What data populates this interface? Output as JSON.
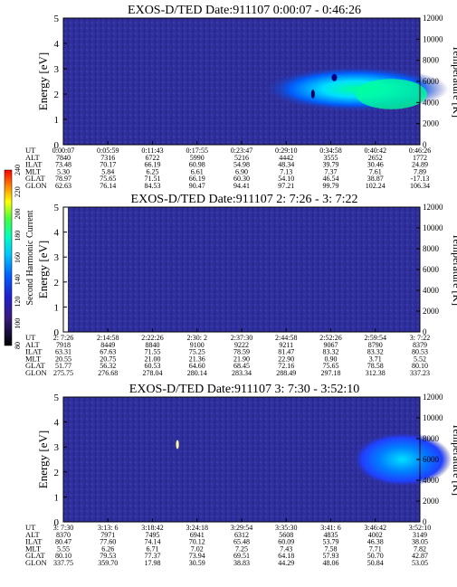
{
  "colorbar": {
    "label": "Second Harmonic Current",
    "ticks": [
      "80",
      "100",
      "120",
      "140",
      "160",
      "180",
      "200",
      "220",
      "240"
    ],
    "range": [
      80,
      240
    ]
  },
  "colors": {
    "background": "#2c2c9a",
    "cold": "#1a1a70",
    "cyan": "#00e0ff",
    "green": "#00ff9a",
    "blue": "#0060ff"
  },
  "chart_data": [
    {
      "type": "heatmap",
      "title": "EXOS-D/TED   Date:911107   0:00:07 - 0:46:26",
      "ylabel": "Energy [eV]",
      "y2label": "Temperature [K]",
      "ylim": [
        0,
        5
      ],
      "y2lim": [
        0,
        12000
      ],
      "yticks": [
        "0",
        "1",
        "2",
        "3",
        "4",
        "5"
      ],
      "y2ticks": [
        "0",
        "2000",
        "4000",
        "6000",
        "8000",
        "10000",
        "12000"
      ],
      "table": {
        "row_labels": [
          "UT",
          "ALT",
          "ILAT",
          "MLT",
          "GLAT",
          "GLON"
        ],
        "columns": [
          [
            "0:00:07",
            "7840",
            "73.48",
            "5.30",
            "78.97",
            "62.63"
          ],
          [
            "0:05:59",
            "7316",
            "70.17",
            "5.84",
            "75.65",
            "76.14"
          ],
          [
            "0:11:43",
            "6722",
            "66.19",
            "6.25",
            "71.51",
            "84.53"
          ],
          [
            "0:17:55",
            "5990",
            "60.98",
            "6.61",
            "66.19",
            "90.47"
          ],
          [
            "0:23:47",
            "5216",
            "54.98",
            "6.90",
            "60.30",
            "94.41"
          ],
          [
            "0:29:10",
            "4442",
            "48.34",
            "7.13",
            "54.10",
            "97.21"
          ],
          [
            "0:34:58",
            "3555",
            "39.79",
            "7.37",
            "46.54",
            "99.79"
          ],
          [
            "0:40:42",
            "2652",
            "30.46",
            "7.61",
            "38.87",
            "102.24"
          ],
          [
            "0:46:26",
            "1772",
            "24.89",
            "7.89",
            "-17.13",
            "106.34"
          ]
        ]
      }
    },
    {
      "type": "heatmap",
      "title": "EXOS-D/TED   Date:911107   2: 7:26 - 3: 7:22",
      "ylabel": "Energy [eV]",
      "y2label": "Temperature [K]",
      "ylim": [
        0,
        5
      ],
      "y2lim": [
        0,
        12000
      ],
      "yticks": [
        "0",
        "1",
        "2",
        "3",
        "4",
        "5"
      ],
      "y2ticks": [
        "0",
        "2000",
        "4000",
        "6000",
        "8000",
        "10000",
        "12000"
      ],
      "table": {
        "row_labels": [
          "UT",
          "ALT",
          "ILAT",
          "MLT",
          "GLAT",
          "GLON"
        ],
        "columns": [
          [
            "2: 7:26",
            "7918",
            "63.31",
            "20.55",
            "51.77",
            "275.75"
          ],
          [
            "2:14:58",
            "8449",
            "67.63",
            "20.75",
            "56.32",
            "276.68"
          ],
          [
            "2:22:26",
            "8840",
            "71.55",
            "21.00",
            "60.53",
            "278.04"
          ],
          [
            "2:30: 2",
            "9100",
            "75.25",
            "21.36",
            "64.60",
            "280.14"
          ],
          [
            "2:37:30",
            "9222",
            "78.59",
            "21.90",
            "68.45",
            "283.34"
          ],
          [
            "2:44:58",
            "9211",
            "81.47",
            "22.90",
            "72.16",
            "288.49"
          ],
          [
            "2:52:26",
            "9067",
            "83.32",
            "0.90",
            "75.65",
            "297.18"
          ],
          [
            "2:59:54",
            "8790",
            "83.32",
            "3.71",
            "78.58",
            "312.38"
          ],
          [
            "3: 7:22",
            "8379",
            "80.53",
            "5.52",
            "80.10",
            "337.23"
          ]
        ]
      }
    },
    {
      "type": "heatmap",
      "title": "EXOS-D/TED   Date:911107   3: 7:30 - 3:52:10",
      "ylabel": "Energy [eV]",
      "y2label": "Temperature [K]",
      "ylim": [
        0,
        5
      ],
      "y2lim": [
        0,
        12000
      ],
      "yticks": [
        "0",
        "1",
        "2",
        "3",
        "4",
        "5"
      ],
      "y2ticks": [
        "0",
        "2000",
        "4000",
        "6000",
        "8000",
        "10000",
        "12000"
      ],
      "table": {
        "row_labels": [
          "UT",
          "ALT",
          "ILAT",
          "MLT",
          "GLAT",
          "GLON"
        ],
        "columns": [
          [
            "3: 7:30",
            "8370",
            "80.47",
            "5.55",
            "80.10",
            "337.75"
          ],
          [
            "3:13: 6",
            "7971",
            "77.60",
            "6.26",
            "79.53",
            "359.70"
          ],
          [
            "3:18:42",
            "7495",
            "74.14",
            "6.71",
            "77.37",
            "17.98"
          ],
          [
            "3:24:18",
            "6941",
            "70.12",
            "7.02",
            "73.94",
            "30.59"
          ],
          [
            "3:29:54",
            "6312",
            "65.48",
            "7.25",
            "69.51",
            "38.83"
          ],
          [
            "3:35:30",
            "5608",
            "60.09",
            "7.43",
            "64.18",
            "44.29"
          ],
          [
            "3:41: 6",
            "4835",
            "53.79",
            "7.58",
            "57.93",
            "48.06"
          ],
          [
            "3:46:42",
            "4002",
            "46.38",
            "7.71",
            "50.70",
            "50.84"
          ],
          [
            "3:52:10",
            "3149",
            "38.05",
            "7.82",
            "42.87",
            "53.05"
          ]
        ]
      }
    }
  ]
}
